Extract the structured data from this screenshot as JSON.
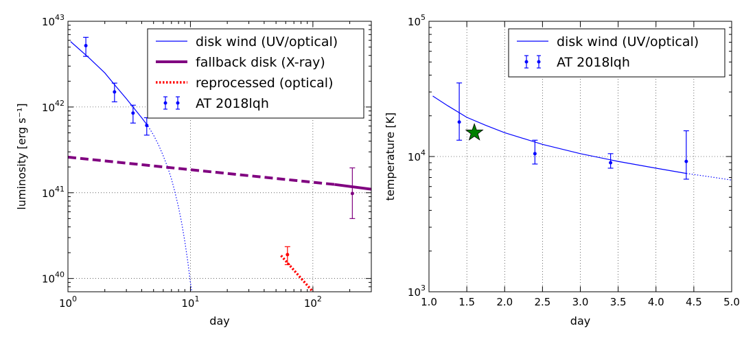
{
  "chart_data": [
    {
      "type": "line",
      "xscale": "log",
      "yscale": "log",
      "xlabel": "day",
      "ylabel": "luminosity [erg s⁻¹]",
      "xlim": [
        1,
        300
      ],
      "ylim": [
        7e+39,
        1e+43
      ],
      "xticks": [
        {
          "value": 1,
          "base": "10",
          "exp": "0"
        },
        {
          "value": 10,
          "base": "10",
          "exp": "1"
        },
        {
          "value": 100,
          "base": "10",
          "exp": "2"
        }
      ],
      "yticks": [
        {
          "value": 1e+40,
          "base": "10",
          "exp": "40"
        },
        {
          "value": 1e+41,
          "base": "10",
          "exp": "41"
        },
        {
          "value": 1e+42,
          "base": "10",
          "exp": "42"
        },
        {
          "value": 1e+43,
          "base": "10",
          "exp": "43"
        }
      ],
      "legend_position": "top-right",
      "series": [
        {
          "name": "disk wind (UV/optical)",
          "color": "#0000ff",
          "style": "solid-thin",
          "x": [
            1.05,
            1.5,
            2.0,
            2.5,
            3.0,
            3.5,
            4.0,
            4.5
          ],
          "y": [
            5.8e+42,
            3.7e+42,
            2.5e+42,
            1.7e+42,
            1.25e+42,
            9.5e+41,
            7.5e+41,
            6e+41
          ]
        },
        {
          "name": "disk wind extrapolation",
          "color": "#0000ff",
          "style": "dotted",
          "legend": false,
          "x": [
            4.5,
            5.0,
            5.5,
            6.0,
            6.5,
            7.0,
            7.5,
            8.0,
            8.5,
            9.0,
            9.5,
            10.0,
            10.3
          ],
          "y": [
            6e+41,
            4.7e+41,
            3.6e+41,
            2.7e+41,
            2e+41,
            1.45e+41,
            1e+41,
            6.8e+40,
            4.4e+40,
            2.7e+40,
            1.6e+40,
            9e+39,
            6.8e+39
          ]
        },
        {
          "name": "fallback disk (X-ray)",
          "color": "#800080",
          "style": "dashed-thick",
          "legend": false,
          "x": [
            1,
            150
          ],
          "y": [
            2.6e+41,
            1.25e+41
          ]
        },
        {
          "name": "fallback disk (X-ray)",
          "color": "#800080",
          "style": "solid-thick",
          "x": [
            150,
            300
          ],
          "y": [
            1.25e+41,
            1.1e+41
          ]
        },
        {
          "name": "reprocessed (optical)",
          "color": "#ff0000",
          "style": "dotted-thick",
          "x": [
            55,
            100
          ],
          "y": [
            1.85e+40,
            7e+39
          ]
        }
      ],
      "errorbar_series": [
        {
          "name": "AT 2018lqh",
          "color": "#0000ff",
          "points": [
            {
              "x": 1.4,
              "y": 5.2e+42,
              "ylo": 3.9e+42,
              "yhi": 6.5e+42
            },
            {
              "x": 2.4,
              "y": 1.5e+42,
              "ylo": 1.15e+42,
              "yhi": 1.9e+42
            },
            {
              "x": 3.4,
              "y": 8.5e+41,
              "ylo": 6.5e+41,
              "yhi": 1.05e+42
            },
            {
              "x": 4.4,
              "y": 6.1e+41,
              "ylo": 4.7e+41,
              "yhi": 7.5e+41
            }
          ]
        },
        {
          "name": "X-ray point",
          "color": "#800080",
          "legend": false,
          "points": [
            {
              "x": 210,
              "y": 9.8e+40,
              "ylo": 5e+40,
              "yhi": 1.95e+41
            }
          ]
        },
        {
          "name": "optical late point",
          "color": "#ff0000",
          "legend": false,
          "points": [
            {
              "x": 62,
              "y": 1.9e+40,
              "ylo": 1.45e+40,
              "yhi": 2.35e+40
            }
          ]
        }
      ],
      "legend_entries": [
        {
          "label": "disk wind (UV/optical)",
          "kind": "line",
          "color": "#0000ff"
        },
        {
          "label": "fallback disk (X-ray)",
          "kind": "thick",
          "color": "#800080"
        },
        {
          "label": "reprocessed (optical)",
          "kind": "dotted",
          "color": "#ff0000"
        },
        {
          "label": "AT 2018lqh",
          "kind": "errorbar",
          "color": "#0000ff"
        }
      ]
    },
    {
      "type": "line",
      "xscale": "linear",
      "yscale": "log",
      "xlabel": "day",
      "ylabel": "temperature [K]",
      "xlim": [
        1.0,
        5.0
      ],
      "ylim": [
        1000,
        100000
      ],
      "xticks": [
        {
          "value": 1.0,
          "label": "1.0"
        },
        {
          "value": 1.5,
          "label": "1.5"
        },
        {
          "value": 2.0,
          "label": "2.0"
        },
        {
          "value": 2.5,
          "label": "2.5"
        },
        {
          "value": 3.0,
          "label": "3.0"
        },
        {
          "value": 3.5,
          "label": "3.5"
        },
        {
          "value": 4.0,
          "label": "4.0"
        },
        {
          "value": 4.5,
          "label": "4.5"
        },
        {
          "value": 5.0,
          "label": "5.0"
        }
      ],
      "yticks": [
        {
          "value": 1000,
          "base": "10",
          "exp": "3"
        },
        {
          "value": 10000,
          "base": "10",
          "exp": "4"
        },
        {
          "value": 100000,
          "base": "10",
          "exp": "5"
        }
      ],
      "legend_position": "top-right",
      "series": [
        {
          "name": "disk wind (UV/optical)",
          "color": "#0000ff",
          "style": "solid-thin",
          "x": [
            1.05,
            1.25,
            1.5,
            1.75,
            2.0,
            2.5,
            3.0,
            3.5,
            4.0,
            4.4
          ],
          "y": [
            28000,
            23700,
            19500,
            17000,
            15000,
            12300,
            10500,
            9200,
            8200,
            7500
          ]
        },
        {
          "name": "disk wind extrapolation",
          "color": "#0000ff",
          "style": "dotted",
          "legend": false,
          "x": [
            4.4,
            4.7,
            5.0
          ],
          "y": [
            7500,
            7100,
            6700
          ]
        }
      ],
      "errorbar_series": [
        {
          "name": "AT 2018lqh",
          "color": "#0000ff",
          "points": [
            {
              "x": 1.4,
              "y": 18000,
              "ylo": 13200,
              "yhi": 35000
            },
            {
              "x": 2.4,
              "y": 10500,
              "ylo": 8800,
              "yhi": 13200
            },
            {
              "x": 3.4,
              "y": 9000,
              "ylo": 8200,
              "yhi": 10500
            },
            {
              "x": 4.4,
              "y": 9200,
              "ylo": 6800,
              "yhi": 15500
            }
          ]
        }
      ],
      "markers": [
        {
          "shape": "star",
          "x": 1.6,
          "y": 15000,
          "color": "#008000"
        }
      ],
      "legend_entries": [
        {
          "label": "disk wind (UV/optical)",
          "kind": "line",
          "color": "#0000ff"
        },
        {
          "label": "AT 2018lqh",
          "kind": "errorbar",
          "color": "#0000ff"
        }
      ]
    }
  ]
}
